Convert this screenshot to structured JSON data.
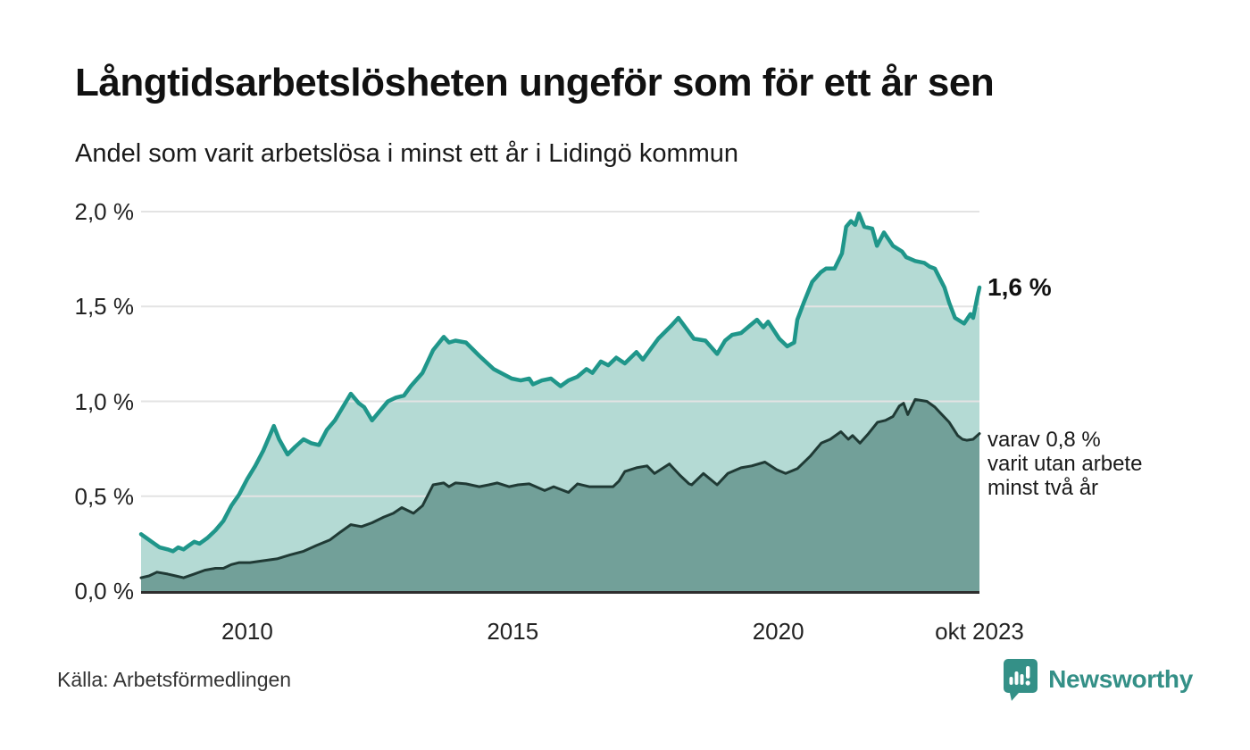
{
  "title": "Långtidsarbetslösheten ungeför som för ett år sen",
  "subtitle": "Andel som varit arbetslösa i minst ett år i Lidingö kommun",
  "source_label": "Källa: Arbetsförmedlingen",
  "logo": {
    "brand": "Newsworthy"
  },
  "annotations": {
    "latest_total": "1,6 %",
    "two_year_line1": "varav 0,8 %",
    "two_year_line2": "varit utan arbete",
    "two_year_line3": "minst två år"
  },
  "colors": {
    "total_line": "#1f968a",
    "total_fill": "#b4dad4",
    "two_year_line": "#203a35",
    "two_year_fill": "#72a099",
    "gridline": "#e3e3e3",
    "baseline": "#2e2e2e",
    "brand_teal": "#349087"
  },
  "chart_data": {
    "type": "area",
    "title": "Långtidsarbetslösheten ungeför som för ett år sen",
    "subtitle": "Andel som varit arbetslösa i minst ett år i Lidingö kommun",
    "ylabel": "",
    "xlabel": "",
    "ylim": [
      0.0,
      2.0
    ],
    "xlim": [
      2008.0,
      2023.79
    ],
    "grid": "horizontal",
    "legend_position": "none",
    "y_ticks": [
      {
        "value": 2.0,
        "label": "2,0 %"
      },
      {
        "value": 1.5,
        "label": "1,5 %"
      },
      {
        "value": 1.0,
        "label": "1,0 %"
      },
      {
        "value": 0.5,
        "label": "0,5 %"
      },
      {
        "value": 0.0,
        "label": "0,0 %"
      }
    ],
    "x_ticks": [
      {
        "value": 2010.0,
        "label": "2010"
      },
      {
        "value": 2015.0,
        "label": "2015"
      },
      {
        "value": 2020.0,
        "label": "2020"
      },
      {
        "value": 2023.79,
        "label": "okt 2023"
      }
    ],
    "series": [
      {
        "name": "arbetslösa minst ett år",
        "end_label": "1,6 %",
        "points": [
          [
            2008.0,
            0.3
          ],
          [
            2008.1,
            0.28
          ],
          [
            2008.2,
            0.26
          ],
          [
            2008.35,
            0.23
          ],
          [
            2008.5,
            0.22
          ],
          [
            2008.6,
            0.21
          ],
          [
            2008.7,
            0.23
          ],
          [
            2008.8,
            0.22
          ],
          [
            2008.9,
            0.24
          ],
          [
            2009.0,
            0.26
          ],
          [
            2009.1,
            0.25
          ],
          [
            2009.25,
            0.28
          ],
          [
            2009.4,
            0.32
          ],
          [
            2009.55,
            0.37
          ],
          [
            2009.7,
            0.45
          ],
          [
            2009.85,
            0.51
          ],
          [
            2010.0,
            0.59
          ],
          [
            2010.15,
            0.66
          ],
          [
            2010.3,
            0.74
          ],
          [
            2010.5,
            0.87
          ],
          [
            2010.6,
            0.8
          ],
          [
            2010.76,
            0.72
          ],
          [
            2010.9,
            0.76
          ],
          [
            2011.06,
            0.8
          ],
          [
            2011.2,
            0.78
          ],
          [
            2011.35,
            0.77
          ],
          [
            2011.5,
            0.85
          ],
          [
            2011.65,
            0.9
          ],
          [
            2011.8,
            0.97
          ],
          [
            2011.95,
            1.04
          ],
          [
            2012.1,
            0.99
          ],
          [
            2012.2,
            0.97
          ],
          [
            2012.35,
            0.9
          ],
          [
            2012.5,
            0.95
          ],
          [
            2012.65,
            1.0
          ],
          [
            2012.8,
            1.02
          ],
          [
            2012.95,
            1.03
          ],
          [
            2013.08,
            1.08
          ],
          [
            2013.3,
            1.15
          ],
          [
            2013.5,
            1.27
          ],
          [
            2013.7,
            1.34
          ],
          [
            2013.8,
            1.31
          ],
          [
            2013.92,
            1.32
          ],
          [
            2014.12,
            1.31
          ],
          [
            2014.37,
            1.24
          ],
          [
            2014.64,
            1.17
          ],
          [
            2014.98,
            1.12
          ],
          [
            2015.15,
            1.11
          ],
          [
            2015.31,
            1.12
          ],
          [
            2015.38,
            1.09
          ],
          [
            2015.55,
            1.11
          ],
          [
            2015.72,
            1.12
          ],
          [
            2015.9,
            1.08
          ],
          [
            2016.05,
            1.11
          ],
          [
            2016.22,
            1.13
          ],
          [
            2016.39,
            1.17
          ],
          [
            2016.5,
            1.15
          ],
          [
            2016.66,
            1.21
          ],
          [
            2016.8,
            1.19
          ],
          [
            2016.95,
            1.23
          ],
          [
            2017.11,
            1.2
          ],
          [
            2017.33,
            1.26
          ],
          [
            2017.45,
            1.22
          ],
          [
            2017.74,
            1.33
          ],
          [
            2017.99,
            1.4
          ],
          [
            2018.12,
            1.44
          ],
          [
            2018.41,
            1.33
          ],
          [
            2018.63,
            1.32
          ],
          [
            2018.85,
            1.25
          ],
          [
            2019.0,
            1.32
          ],
          [
            2019.13,
            1.35
          ],
          [
            2019.3,
            1.36
          ],
          [
            2019.47,
            1.4
          ],
          [
            2019.6,
            1.43
          ],
          [
            2019.72,
            1.39
          ],
          [
            2019.81,
            1.42
          ],
          [
            2020.02,
            1.33
          ],
          [
            2020.17,
            1.29
          ],
          [
            2020.3,
            1.31
          ],
          [
            2020.36,
            1.43
          ],
          [
            2020.48,
            1.52
          ],
          [
            2020.64,
            1.63
          ],
          [
            2020.8,
            1.68
          ],
          [
            2020.9,
            1.7
          ],
          [
            2021.06,
            1.7
          ],
          [
            2021.2,
            1.78
          ],
          [
            2021.28,
            1.92
          ],
          [
            2021.37,
            1.95
          ],
          [
            2021.45,
            1.93
          ],
          [
            2021.52,
            1.99
          ],
          [
            2021.62,
            1.92
          ],
          [
            2021.77,
            1.91
          ],
          [
            2021.86,
            1.82
          ],
          [
            2021.99,
            1.89
          ],
          [
            2022.16,
            1.82
          ],
          [
            2022.33,
            1.79
          ],
          [
            2022.41,
            1.76
          ],
          [
            2022.58,
            1.74
          ],
          [
            2022.75,
            1.73
          ],
          [
            2022.85,
            1.71
          ],
          [
            2022.95,
            1.7
          ],
          [
            2023.13,
            1.6
          ],
          [
            2023.22,
            1.52
          ],
          [
            2023.33,
            1.44
          ],
          [
            2023.5,
            1.41
          ],
          [
            2023.62,
            1.46
          ],
          [
            2023.67,
            1.44
          ],
          [
            2023.75,
            1.55
          ],
          [
            2023.79,
            1.6
          ]
        ]
      },
      {
        "name": "varav utan arbete minst två år",
        "end_label": "varav 0,8 % varit utan arbete minst två år",
        "points": [
          [
            2008.0,
            0.07
          ],
          [
            2008.15,
            0.08
          ],
          [
            2008.3,
            0.1
          ],
          [
            2008.5,
            0.09
          ],
          [
            2008.65,
            0.08
          ],
          [
            2008.8,
            0.07
          ],
          [
            2009.0,
            0.09
          ],
          [
            2009.2,
            0.11
          ],
          [
            2009.4,
            0.12
          ],
          [
            2009.55,
            0.12
          ],
          [
            2009.7,
            0.14
          ],
          [
            2009.85,
            0.15
          ],
          [
            2010.05,
            0.15
          ],
          [
            2010.3,
            0.16
          ],
          [
            2010.56,
            0.17
          ],
          [
            2010.8,
            0.19
          ],
          [
            2011.06,
            0.21
          ],
          [
            2011.3,
            0.24
          ],
          [
            2011.56,
            0.27
          ],
          [
            2011.75,
            0.31
          ],
          [
            2011.95,
            0.35
          ],
          [
            2012.15,
            0.34
          ],
          [
            2012.35,
            0.36
          ],
          [
            2012.57,
            0.39
          ],
          [
            2012.75,
            0.41
          ],
          [
            2012.91,
            0.44
          ],
          [
            2013.13,
            0.41
          ],
          [
            2013.3,
            0.45
          ],
          [
            2013.5,
            0.56
          ],
          [
            2013.7,
            0.57
          ],
          [
            2013.8,
            0.55
          ],
          [
            2013.92,
            0.57
          ],
          [
            2014.12,
            0.565
          ],
          [
            2014.37,
            0.55
          ],
          [
            2014.55,
            0.56
          ],
          [
            2014.71,
            0.57
          ],
          [
            2014.93,
            0.55
          ],
          [
            2015.1,
            0.56
          ],
          [
            2015.31,
            0.565
          ],
          [
            2015.6,
            0.53
          ],
          [
            2015.77,
            0.55
          ],
          [
            2016.05,
            0.52
          ],
          [
            2016.22,
            0.565
          ],
          [
            2016.44,
            0.55
          ],
          [
            2016.66,
            0.55
          ],
          [
            2016.89,
            0.55
          ],
          [
            2017.0,
            0.58
          ],
          [
            2017.11,
            0.63
          ],
          [
            2017.33,
            0.65
          ],
          [
            2017.53,
            0.66
          ],
          [
            2017.67,
            0.62
          ],
          [
            2017.95,
            0.67
          ],
          [
            2018.15,
            0.61
          ],
          [
            2018.32,
            0.565
          ],
          [
            2018.37,
            0.56
          ],
          [
            2018.59,
            0.62
          ],
          [
            2018.85,
            0.56
          ],
          [
            2019.05,
            0.62
          ],
          [
            2019.3,
            0.65
          ],
          [
            2019.5,
            0.66
          ],
          [
            2019.75,
            0.68
          ],
          [
            2019.97,
            0.64
          ],
          [
            2020.14,
            0.62
          ],
          [
            2020.36,
            0.645
          ],
          [
            2020.6,
            0.71
          ],
          [
            2020.81,
            0.78
          ],
          [
            2020.98,
            0.8
          ],
          [
            2021.18,
            0.84
          ],
          [
            2021.32,
            0.8
          ],
          [
            2021.4,
            0.82
          ],
          [
            2021.54,
            0.78
          ],
          [
            2021.7,
            0.83
          ],
          [
            2021.87,
            0.89
          ],
          [
            2022.02,
            0.9
          ],
          [
            2022.16,
            0.92
          ],
          [
            2022.28,
            0.975
          ],
          [
            2022.36,
            0.99
          ],
          [
            2022.44,
            0.93
          ],
          [
            2022.58,
            1.01
          ],
          [
            2022.8,
            1.0
          ],
          [
            2022.95,
            0.97
          ],
          [
            2023.05,
            0.94
          ],
          [
            2023.22,
            0.89
          ],
          [
            2023.38,
            0.82
          ],
          [
            2023.47,
            0.8
          ],
          [
            2023.55,
            0.795
          ],
          [
            2023.67,
            0.8
          ],
          [
            2023.75,
            0.82
          ],
          [
            2023.79,
            0.83
          ]
        ]
      }
    ]
  }
}
